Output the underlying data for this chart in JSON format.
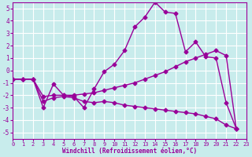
{
  "xlabel": "Windchill (Refroidissement éolien,°C)",
  "bg_color": "#c8ecec",
  "grid_color": "#ffffff",
  "line_color": "#990099",
  "xlim": [
    0,
    23
  ],
  "ylim": [
    -5.5,
    5.5
  ],
  "yticks": [
    -5,
    -4,
    -3,
    -2,
    -1,
    0,
    1,
    2,
    3,
    4,
    5
  ],
  "xticks": [
    0,
    1,
    2,
    3,
    4,
    5,
    6,
    7,
    8,
    9,
    10,
    11,
    12,
    13,
    14,
    15,
    16,
    17,
    18,
    19,
    20,
    21,
    22,
    23
  ],
  "line1_x": [
    0,
    1,
    2,
    3,
    4,
    5,
    6,
    7,
    8,
    9,
    10,
    11,
    12,
    13,
    14,
    15,
    16,
    17,
    18,
    19,
    20,
    21,
    22
  ],
  "line1_y": [
    -0.7,
    -0.7,
    -0.7,
    -3.0,
    -1.1,
    -2.0,
    -2.1,
    -3.0,
    -1.5,
    -0.1,
    0.5,
    1.6,
    3.5,
    4.3,
    5.5,
    4.7,
    4.6,
    1.5,
    2.3,
    1.1,
    1.0,
    -2.6,
    -4.7
  ],
  "line2_x": [
    0,
    1,
    2,
    3,
    4,
    5,
    6,
    7,
    8,
    9,
    10,
    11,
    12,
    13,
    14,
    15,
    16,
    17,
    18,
    19,
    20,
    21,
    22
  ],
  "line2_y": [
    -0.7,
    -0.7,
    -0.7,
    -2.1,
    -2.0,
    -2.0,
    -2.0,
    -1.9,
    -1.8,
    -1.6,
    -1.4,
    -1.2,
    -1.0,
    -0.7,
    -0.4,
    -0.1,
    0.3,
    0.7,
    1.0,
    1.3,
    1.6,
    1.2,
    -4.7
  ],
  "line3_x": [
    0,
    1,
    2,
    3,
    4,
    5,
    6,
    7,
    8,
    9,
    10,
    11,
    12,
    13,
    14,
    15,
    16,
    17,
    18,
    19,
    20,
    21,
    22
  ],
  "line3_y": [
    -0.7,
    -0.7,
    -0.7,
    -2.5,
    -2.2,
    -2.1,
    -2.2,
    -2.5,
    -2.6,
    -2.5,
    -2.6,
    -2.8,
    -2.9,
    -3.0,
    -3.1,
    -3.2,
    -3.3,
    -3.4,
    -3.5,
    -3.7,
    -3.9,
    -4.4,
    -4.7
  ],
  "markersize": 2.5,
  "linewidth": 1.0
}
